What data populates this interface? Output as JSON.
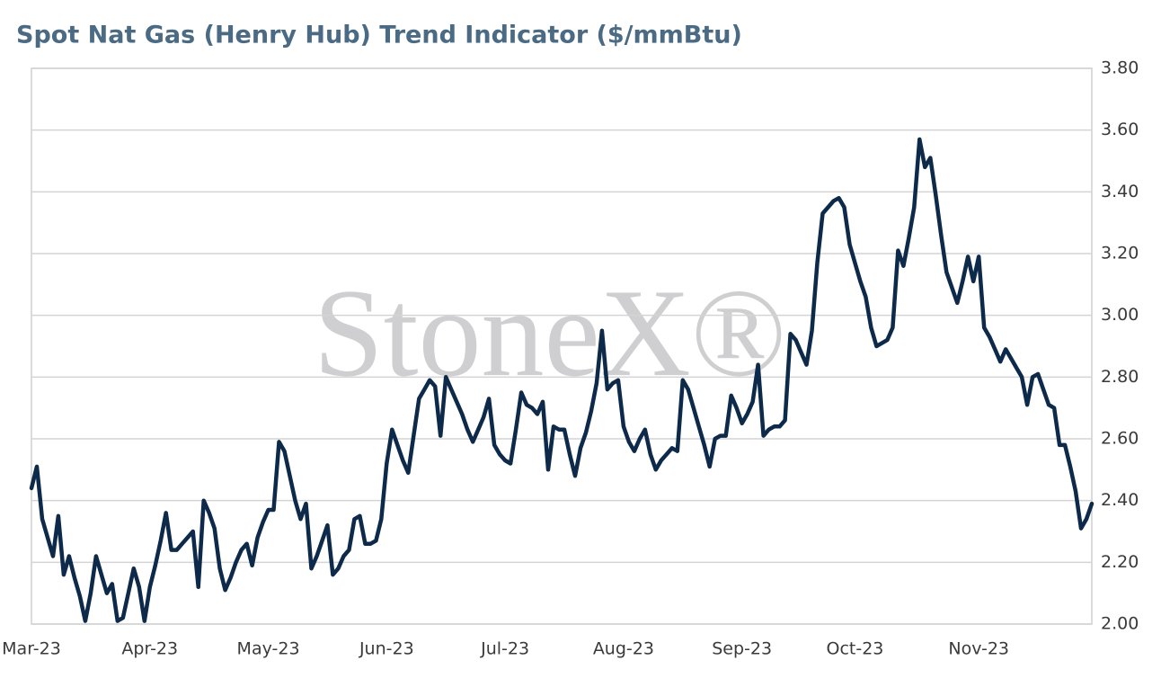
{
  "chart_data": {
    "type": "line",
    "title": "Spot Nat Gas (Henry Hub) Trend Indicator ($/mmBtu)",
    "watermark": "StoneX®",
    "categories": [
      "Mar-23",
      null,
      null,
      null,
      null,
      null,
      null,
      null,
      null,
      null,
      null,
      null,
      null,
      null,
      null,
      null,
      null,
      null,
      null,
      null,
      null,
      null,
      "Apr-23",
      null,
      null,
      null,
      null,
      null,
      null,
      null,
      null,
      null,
      null,
      null,
      null,
      null,
      null,
      null,
      null,
      null,
      null,
      null,
      null,
      null,
      "May-23",
      null,
      null,
      null,
      null,
      null,
      null,
      null,
      null,
      null,
      null,
      null,
      null,
      null,
      null,
      null,
      null,
      null,
      null,
      null,
      null,
      null,
      "Jun-23",
      null,
      null,
      null,
      null,
      null,
      null,
      null,
      null,
      null,
      null,
      null,
      null,
      null,
      null,
      null,
      null,
      null,
      null,
      null,
      null,
      null,
      "Jul-23",
      null,
      null,
      null,
      null,
      null,
      null,
      null,
      null,
      null,
      null,
      null,
      null,
      null,
      null,
      null,
      null,
      null,
      null,
      null,
      null,
      null,
      "Aug-23",
      null,
      null,
      null,
      null,
      null,
      null,
      null,
      null,
      null,
      null,
      null,
      null,
      null,
      null,
      null,
      null,
      null,
      null,
      null,
      null,
      null,
      "Sep-23",
      null,
      null,
      null,
      null,
      null,
      null,
      null,
      null,
      null,
      null,
      null,
      null,
      null,
      null,
      null,
      null,
      null,
      null,
      null,
      null,
      "Oct-23",
      null,
      null,
      null,
      null,
      null,
      null,
      null,
      null,
      null,
      null,
      null,
      null,
      null,
      null,
      null,
      null,
      null,
      null,
      null,
      null,
      null,
      null,
      "Nov-23",
      null,
      null,
      null,
      null,
      null,
      null,
      null,
      null,
      null,
      null,
      null,
      null,
      null,
      null,
      null,
      null,
      null,
      null,
      null,
      null,
      null
    ],
    "series": [
      {
        "color": "#0e2a4a",
        "values": [
          2.44,
          2.51,
          2.34,
          2.28,
          2.22,
          2.35,
          2.16,
          2.22,
          2.15,
          2.09,
          2.01,
          2.1,
          2.22,
          2.16,
          2.1,
          2.13,
          2.01,
          2.02,
          2.1,
          2.18,
          2.12,
          2.01,
          2.12,
          2.19,
          2.27,
          2.36,
          2.24,
          2.24,
          2.26,
          2.28,
          2.3,
          2.12,
          2.4,
          2.36,
          2.31,
          2.18,
          2.11,
          2.15,
          2.2,
          2.24,
          2.26,
          2.19,
          2.28,
          2.33,
          2.37,
          2.37,
          2.59,
          2.56,
          2.48,
          2.4,
          2.34,
          2.39,
          2.18,
          2.22,
          2.27,
          2.32,
          2.16,
          2.18,
          2.22,
          2.24,
          2.34,
          2.35,
          2.26,
          2.26,
          2.27,
          2.34,
          2.52,
          2.63,
          2.58,
          2.53,
          2.49,
          2.61,
          2.73,
          2.76,
          2.79,
          2.77,
          2.61,
          2.8,
          2.76,
          2.72,
          2.68,
          2.63,
          2.59,
          2.63,
          2.67,
          2.73,
          2.58,
          2.55,
          2.53,
          2.52,
          2.63,
          2.75,
          2.71,
          2.7,
          2.68,
          2.72,
          2.5,
          2.64,
          2.63,
          2.63,
          2.55,
          2.48,
          2.57,
          2.62,
          2.69,
          2.78,
          2.95,
          2.76,
          2.78,
          2.79,
          2.64,
          2.59,
          2.56,
          2.6,
          2.63,
          2.55,
          2.5,
          2.53,
          2.55,
          2.57,
          2.56,
          2.79,
          2.76,
          2.7,
          2.64,
          2.58,
          2.51,
          2.6,
          2.61,
          2.61,
          2.74,
          2.7,
          2.65,
          2.68,
          2.72,
          2.84,
          2.61,
          2.63,
          2.64,
          2.64,
          2.66,
          2.94,
          2.92,
          2.88,
          2.84,
          2.95,
          3.17,
          3.33,
          3.35,
          3.37,
          3.38,
          3.35,
          3.23,
          3.17,
          3.11,
          3.06,
          2.96,
          2.9,
          2.91,
          2.92,
          2.96,
          3.21,
          3.16,
          3.25,
          3.35,
          3.57,
          3.48,
          3.51,
          3.39,
          3.26,
          3.14,
          3.09,
          3.04,
          3.11,
          3.19,
          3.11,
          3.19,
          2.96,
          2.93,
          2.89,
          2.85,
          2.89,
          2.86,
          2.83,
          2.8,
          2.71,
          2.8,
          2.81,
          2.76,
          2.71,
          2.7,
          2.58,
          2.58,
          2.51,
          2.43,
          2.31,
          2.34,
          2.39
        ]
      }
    ],
    "ylim": [
      2,
      3.8
    ],
    "yticks": [
      {
        "value": 2,
        "label": "2.00"
      },
      {
        "value": 2.2,
        "label": "2.20"
      },
      {
        "value": 2.4,
        "label": "2.40"
      },
      {
        "value": 2.6,
        "label": "2.60"
      },
      {
        "value": 2.8,
        "label": "2.80"
      },
      {
        "value": 3,
        "label": "3.00"
      },
      {
        "value": 3.2,
        "label": "3.20"
      },
      {
        "value": 3.4,
        "label": "3.40"
      },
      {
        "value": 3.6,
        "label": "3.60"
      },
      {
        "value": 3.8,
        "label": "3.80"
      }
    ],
    "grid": true
  }
}
